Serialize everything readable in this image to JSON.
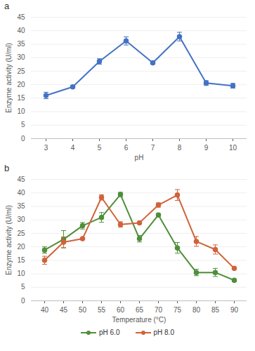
{
  "chart_data": [
    {
      "type": "line",
      "title": "a",
      "x_label": "pH",
      "y_label": "Enzyme activity (U/ml)",
      "categories": [
        3,
        4,
        5,
        6,
        7,
        8,
        9,
        10
      ],
      "series": [
        {
          "color": "#4472c4",
          "marker": "circle",
          "values": [
            16.0,
            19.2,
            28.6,
            36.2,
            28.1,
            37.8,
            20.6,
            19.6
          ],
          "errors": [
            1.2,
            0.4,
            1.0,
            1.5,
            0.5,
            1.6,
            0.9,
            0.9
          ]
        }
      ],
      "ylim": [
        0,
        45
      ],
      "yticks": [
        0,
        5,
        10,
        15,
        20,
        25,
        30,
        35,
        40,
        45
      ],
      "grid": true
    },
    {
      "type": "line",
      "title": "b",
      "x_label": "Temperature (°C)",
      "y_label": "Enzyme activity (U/ml)",
      "categories": [
        40,
        45,
        50,
        55,
        60,
        65,
        70,
        75,
        80,
        85,
        90
      ],
      "series": [
        {
          "name": "pH 6.0",
          "color": "#4f8f3a",
          "marker": "circle",
          "values": [
            18.8,
            22.8,
            27.8,
            30.9,
            39.4,
            23.0,
            31.8,
            19.6,
            10.5,
            10.5,
            7.6
          ],
          "errors": [
            1.2,
            3.2,
            1.2,
            1.8,
            0.8,
            1.2,
            0.5,
            2.0,
            1.2,
            1.5,
            0.5
          ]
        },
        {
          "name": "pH 8.0",
          "color": "#d0633a",
          "marker": "circle",
          "values": [
            15.0,
            21.7,
            23.0,
            38.3,
            28.3,
            28.9,
            35.5,
            39.2,
            22.0,
            19.0,
            12.0
          ],
          "errors": [
            1.5,
            2.0,
            0.3,
            1.0,
            1.0,
            0.3,
            0.8,
            2.0,
            1.8,
            1.7,
            0.3
          ]
        }
      ],
      "ylim": [
        0,
        45
      ],
      "yticks": [
        0,
        5,
        10,
        15,
        20,
        25,
        30,
        35,
        40,
        45
      ],
      "grid": true,
      "legend": "bottom"
    }
  ]
}
